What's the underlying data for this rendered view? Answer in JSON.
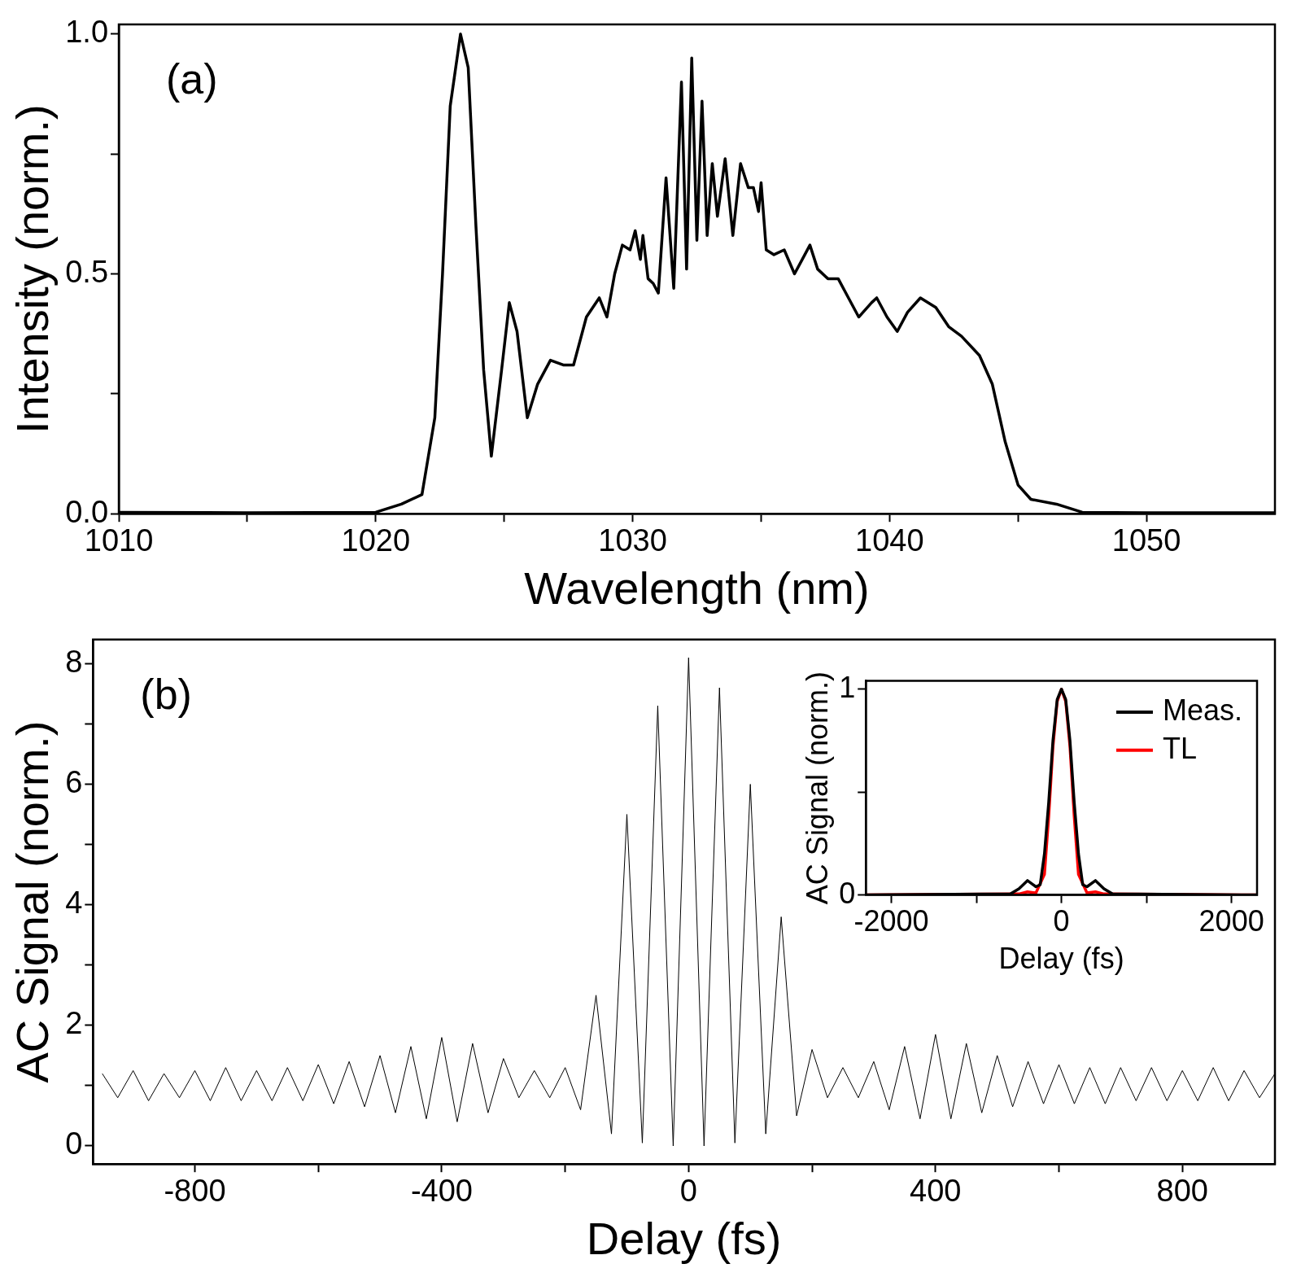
{
  "chart_data": [
    {
      "type": "line",
      "xlabel": "Wavelength (nm)",
      "ylabel": "Intensity (norm.)",
      "annotations": [
        "(a)"
      ],
      "color": "#000000",
      "xlim": [
        1010,
        1055
      ],
      "xticks": [
        1010,
        {
          "value": 1015,
          "label": null
        },
        1020,
        {
          "value": 1025,
          "label": null
        },
        1030,
        {
          "value": 1035,
          "label": null
        },
        1040,
        {
          "value": 1045,
          "label": null
        },
        1050
      ],
      "ylim": [
        0,
        1.02
      ],
      "yticks": [
        {
          "value": 0,
          "label": "0.0"
        },
        {
          "value": 0.25,
          "label": null
        },
        {
          "value": 0.5,
          "label": "0.5"
        },
        {
          "value": 0.75,
          "label": null
        },
        {
          "value": 1,
          "label": "1.0"
        }
      ],
      "x": [
        1010,
        1015,
        1020,
        1021,
        1021.8,
        1022.3,
        1022.6,
        1022.9,
        1023.3,
        1023.6,
        1023.9,
        1024.2,
        1024.5,
        1024.9,
        1025.2,
        1025.5,
        1025.9,
        1026.3,
        1026.8,
        1027.3,
        1027.7,
        1028.2,
        1028.7,
        1029.0,
        1029.3,
        1029.6,
        1029.9,
        1030.1,
        1030.3,
        1030.4,
        1030.6,
        1030.8,
        1031.0,
        1031.3,
        1031.6,
        1031.9,
        1032.1,
        1032.3,
        1032.5,
        1032.7,
        1032.9,
        1033.1,
        1033.3,
        1033.6,
        1033.9,
        1034.2,
        1034.5,
        1034.7,
        1034.9,
        1035.0,
        1035.2,
        1035.5,
        1035.9,
        1036.3,
        1036.6,
        1036.9,
        1037.2,
        1037.6,
        1038.0,
        1038.4,
        1038.8,
        1039.3,
        1039.5,
        1039.9,
        1040.3,
        1040.7,
        1041.2,
        1041.8,
        1042.3,
        1042.8,
        1043.5,
        1044.0,
        1044.5,
        1045.0,
        1045.5,
        1046.5,
        1047.5,
        1050,
        1055
      ],
      "values": [
        0.003,
        0.002,
        0.003,
        0.02,
        0.04,
        0.2,
        0.5,
        0.85,
        1.0,
        0.93,
        0.6,
        0.3,
        0.12,
        0.3,
        0.44,
        0.38,
        0.2,
        0.27,
        0.32,
        0.31,
        0.31,
        0.41,
        0.45,
        0.41,
        0.5,
        0.56,
        0.55,
        0.59,
        0.53,
        0.58,
        0.49,
        0.48,
        0.46,
        0.7,
        0.47,
        0.9,
        0.51,
        0.95,
        0.57,
        0.86,
        0.58,
        0.73,
        0.62,
        0.74,
        0.58,
        0.73,
        0.68,
        0.68,
        0.63,
        0.69,
        0.55,
        0.54,
        0.55,
        0.5,
        0.53,
        0.56,
        0.51,
        0.49,
        0.49,
        0.45,
        0.41,
        0.44,
        0.45,
        0.41,
        0.38,
        0.42,
        0.45,
        0.43,
        0.39,
        0.37,
        0.33,
        0.27,
        0.15,
        0.06,
        0.03,
        0.02,
        0.003,
        0.002,
        0.002
      ]
    },
    {
      "type": "line",
      "xlabel": "Delay (fs)",
      "ylabel": "AC Signal (norm.)",
      "annotations": [
        "(b)"
      ],
      "color": "#000000",
      "xlim": [
        -965,
        950
      ],
      "xticks": [
        -800,
        {
          "value": -600,
          "label": null
        },
        -400,
        {
          "value": -200,
          "label": null
        },
        0,
        {
          "value": 200,
          "label": null
        },
        400,
        {
          "value": 600,
          "label": null
        },
        800
      ],
      "ylim": [
        -0.3,
        8.4
      ],
      "yticks": [
        0,
        {
          "value": 1,
          "label": null
        },
        2,
        {
          "value": 3,
          "label": null
        },
        4,
        {
          "value": 5,
          "label": null
        },
        6,
        {
          "value": 7,
          "label": null
        },
        8
      ],
      "x": [
        -950,
        -925,
        -900,
        -875,
        -850,
        -825,
        -800,
        -775,
        -750,
        -725,
        -700,
        -675,
        -650,
        -625,
        -600,
        -575,
        -550,
        -525,
        -500,
        -475,
        -450,
        -425,
        -400,
        -375,
        -350,
        -325,
        -300,
        -275,
        -250,
        -225,
        -200,
        -175,
        -150,
        -125,
        -100,
        -75,
        -50,
        -25,
        0,
        25,
        50,
        75,
        100,
        125,
        150,
        175,
        200,
        225,
        250,
        275,
        300,
        325,
        350,
        375,
        400,
        425,
        450,
        475,
        500,
        525,
        550,
        575,
        600,
        625,
        650,
        675,
        700,
        725,
        750,
        775,
        800,
        825,
        850,
        875,
        900,
        925,
        950
      ],
      "values": [
        1.2,
        0.8,
        1.25,
        0.75,
        1.2,
        0.8,
        1.25,
        0.75,
        1.3,
        0.75,
        1.25,
        0.75,
        1.3,
        0.75,
        1.35,
        0.7,
        1.4,
        0.65,
        1.5,
        0.55,
        1.65,
        0.45,
        1.8,
        0.4,
        1.7,
        0.55,
        1.45,
        0.8,
        1.25,
        0.8,
        1.3,
        0.6,
        2.5,
        0.2,
        5.5,
        0.05,
        7.3,
        0,
        8.1,
        0,
        7.6,
        0.05,
        6,
        0.2,
        3.8,
        0.5,
        1.6,
        0.8,
        1.3,
        0.8,
        1.4,
        0.6,
        1.65,
        0.45,
        1.85,
        0.45,
        1.7,
        0.55,
        1.5,
        0.65,
        1.4,
        0.7,
        1.35,
        0.7,
        1.3,
        0.7,
        1.3,
        0.75,
        1.3,
        0.75,
        1.25,
        0.75,
        1.3,
        0.75,
        1.25,
        0.8,
        1.2
      ]
    },
    {
      "type": "line",
      "xlabel": "Delay (fs)",
      "ylabel": "AC Signal (norm.)",
      "legend": "top right",
      "xlim": [
        -2300,
        2300
      ],
      "xticks": [
        -2000,
        {
          "value": -1000,
          "label": null
        },
        0,
        {
          "value": 1000,
          "label": null
        },
        2000
      ],
      "ylim": [
        0,
        1.04
      ],
      "yticks": [
        0,
        {
          "value": 0.5,
          "label": null
        },
        1
      ],
      "series": [
        {
          "name": "Meas.",
          "color": "#000000",
          "x": [
            -2300,
            -600,
            -500,
            -400,
            -300,
            -250,
            -200,
            -150,
            -100,
            -50,
            0,
            50,
            100,
            150,
            200,
            250,
            300,
            400,
            500,
            600,
            2300
          ],
          "values": [
            0,
            0.005,
            0.03,
            0.07,
            0.04,
            0.05,
            0.2,
            0.45,
            0.75,
            0.95,
            1,
            0.95,
            0.75,
            0.45,
            0.2,
            0.05,
            0.04,
            0.07,
            0.03,
            0.005,
            0
          ]
        },
        {
          "name": "TL",
          "color": "#ff0000",
          "x": [
            -2300,
            -500,
            -400,
            -300,
            -200,
            -150,
            -100,
            -50,
            0,
            50,
            100,
            150,
            200,
            300,
            400,
            500,
            2300
          ],
          "values": [
            0,
            0.005,
            0.015,
            0.01,
            0.1,
            0.38,
            0.72,
            0.94,
            1,
            0.94,
            0.72,
            0.38,
            0.1,
            0.01,
            0.015,
            0.005,
            0
          ]
        }
      ]
    }
  ]
}
